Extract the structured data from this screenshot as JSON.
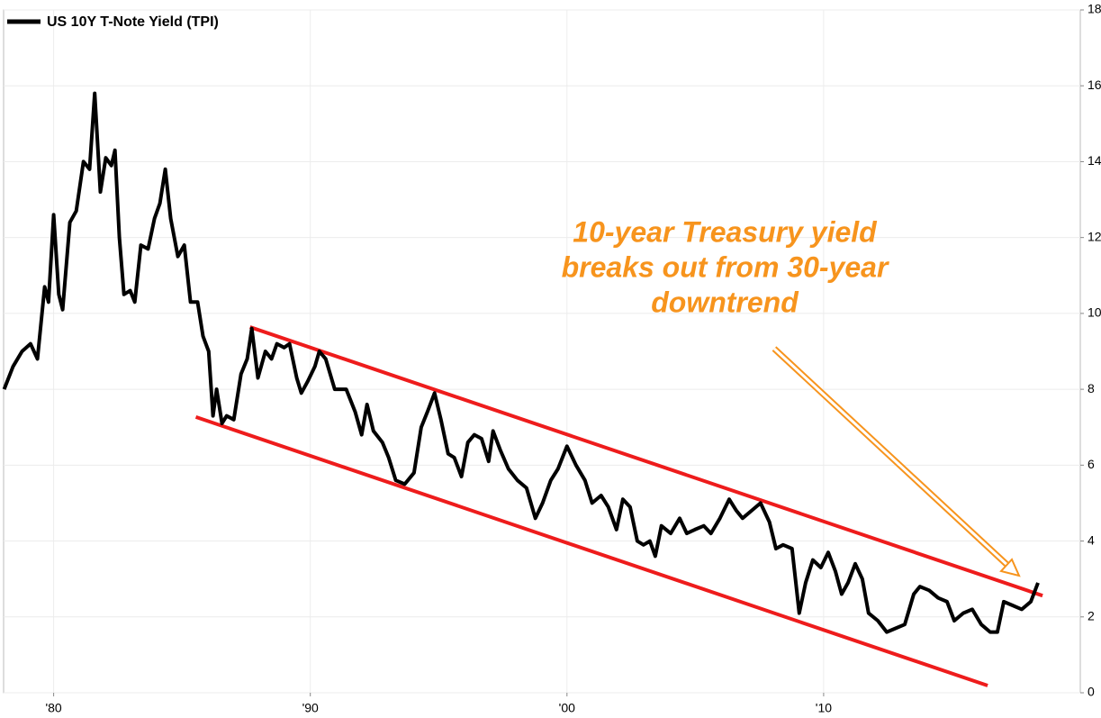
{
  "chart_data": {
    "type": "line",
    "x": [
      1978.07,
      1978.42,
      1978.77,
      1979.1,
      1979.37,
      1979.65,
      1979.8,
      1980.0,
      1980.2,
      1980.35,
      1980.63,
      1980.88,
      1981.16,
      1981.4,
      1981.6,
      1981.82,
      1982.03,
      1982.25,
      1982.39,
      1982.56,
      1982.74,
      1982.98,
      1983.16,
      1983.4,
      1983.68,
      1983.93,
      1984.14,
      1984.35,
      1984.56,
      1984.84,
      1985.09,
      1985.33,
      1985.61,
      1985.82,
      1986.04,
      1986.21,
      1986.35,
      1986.56,
      1986.74,
      1987.02,
      1987.3,
      1987.54,
      1987.72,
      1987.96,
      1988.25,
      1988.49,
      1988.7,
      1988.98,
      1989.19,
      1989.47,
      1989.65,
      1989.89,
      1990.18,
      1990.35,
      1990.6,
      1990.95,
      1991.4,
      1991.75,
      1992.0,
      1992.21,
      1992.46,
      1992.81,
      1993.05,
      1993.33,
      1993.68,
      1994.04,
      1994.32,
      1994.56,
      1994.84,
      1995.09,
      1995.37,
      1995.61,
      1995.89,
      1996.14,
      1996.39,
      1996.67,
      1996.95,
      1997.12,
      1997.4,
      1997.72,
      1998.07,
      1998.42,
      1998.77,
      1999.05,
      1999.37,
      1999.65,
      2000.0,
      2000.35,
      2000.7,
      2000.98,
      2001.33,
      2001.61,
      2001.93,
      2002.18,
      2002.46,
      2002.74,
      2002.98,
      2003.23,
      2003.44,
      2003.68,
      2004.04,
      2004.39,
      2004.67,
      2004.98,
      2005.33,
      2005.61,
      2005.96,
      2006.32,
      2006.6,
      2006.84,
      2007.19,
      2007.54,
      2007.89,
      2008.14,
      2008.42,
      2008.77,
      2009.05,
      2009.3,
      2009.58,
      2009.89,
      2010.18,
      2010.46,
      2010.7,
      2010.95,
      2011.23,
      2011.51,
      2011.75,
      2012.11,
      2012.46,
      2012.81,
      2013.16,
      2013.51,
      2013.75,
      2014.11,
      2014.46,
      2014.81,
      2015.09,
      2015.44,
      2015.79,
      2016.14,
      2016.49,
      2016.77,
      2017.02,
      2017.37,
      2017.72,
      2018.07,
      2018.35
    ],
    "series": [
      {
        "name": "US 10Y T-Note Yield (TPI)",
        "color": "#000000",
        "values": [
          8.0,
          8.6,
          9.0,
          9.2,
          8.8,
          10.7,
          10.3,
          12.6,
          10.5,
          10.1,
          12.4,
          12.7,
          14.0,
          13.8,
          15.8,
          13.2,
          14.1,
          13.9,
          14.3,
          12.0,
          10.5,
          10.6,
          10.3,
          11.8,
          11.7,
          12.5,
          12.9,
          13.8,
          12.5,
          11.5,
          11.8,
          10.3,
          10.3,
          9.4,
          9.0,
          7.3,
          8.0,
          7.1,
          7.3,
          7.2,
          8.4,
          8.8,
          9.6,
          8.3,
          9.0,
          8.8,
          9.2,
          9.1,
          9.2,
          8.3,
          7.9,
          8.2,
          8.6,
          9.0,
          8.8,
          8.0,
          8.0,
          7.4,
          6.8,
          7.6,
          6.9,
          6.6,
          6.2,
          5.6,
          5.5,
          5.8,
          7.0,
          7.4,
          7.9,
          7.2,
          6.3,
          6.2,
          5.7,
          6.6,
          6.8,
          6.7,
          6.1,
          6.9,
          6.4,
          5.9,
          5.6,
          5.4,
          4.6,
          5.0,
          5.6,
          5.9,
          6.5,
          6.0,
          5.6,
          5.0,
          5.2,
          4.9,
          4.3,
          5.1,
          4.9,
          4.0,
          3.9,
          4.0,
          3.6,
          4.4,
          4.2,
          4.6,
          4.2,
          4.3,
          4.4,
          4.2,
          4.6,
          5.1,
          4.8,
          4.6,
          4.8,
          5.0,
          4.5,
          3.8,
          3.9,
          3.8,
          2.1,
          2.9,
          3.5,
          3.3,
          3.7,
          3.2,
          2.6,
          2.9,
          3.4,
          3.0,
          2.1,
          1.9,
          1.6,
          1.7,
          1.8,
          2.6,
          2.8,
          2.7,
          2.5,
          2.4,
          1.9,
          2.1,
          2.2,
          1.8,
          1.6,
          1.6,
          2.4,
          2.3,
          2.2,
          2.4,
          2.9
        ]
      }
    ],
    "trend_lines": [
      {
        "color": "#ee1c1c",
        "x": [
          1987.65,
          2018.53
        ],
        "y": [
          9.64,
          2.56
        ]
      },
      {
        "color": "#ee1c1c",
        "x": [
          1985.54,
          2016.39
        ],
        "y": [
          7.27,
          0.19
        ]
      }
    ],
    "annotation": [
      "10-year Treasury yield",
      "breaks out from 30-year",
      "downtrend"
    ],
    "annotation_color": "#f7941d",
    "xlim": [
      1978.05,
      2020.0
    ],
    "ylim": [
      0,
      18
    ],
    "xticks": [
      {
        "value": 1980,
        "label": "'80"
      },
      {
        "value": 1990,
        "label": "'90"
      },
      {
        "value": 2000,
        "label": "'00"
      },
      {
        "value": 2010,
        "label": "'10"
      }
    ],
    "yticks": [
      0,
      2,
      4,
      6,
      8,
      10,
      12,
      14,
      16,
      18
    ],
    "grid": true
  }
}
